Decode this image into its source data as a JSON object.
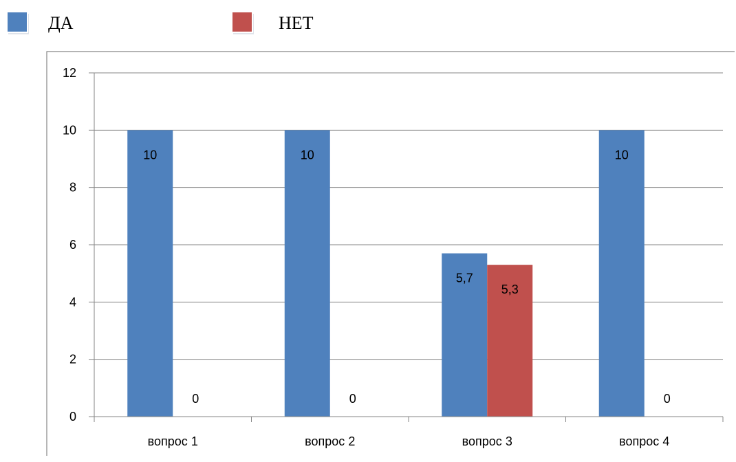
{
  "chart_data": {
    "type": "bar",
    "categories": [
      "вопрос 1",
      "вопрос 2",
      "вопрос 3",
      "вопрос 4"
    ],
    "series": [
      {
        "name": "ДА",
        "color": "#4f81bd",
        "values": [
          10,
          10,
          5.7,
          10
        ],
        "labels": [
          "10",
          "10",
          "5,7",
          "10"
        ]
      },
      {
        "name": "НЕТ",
        "color": "#c0504d",
        "values": [
          0,
          0,
          5.3,
          0
        ],
        "labels": [
          "0",
          "0",
          "5,3",
          "0"
        ]
      }
    ],
    "yticks": [
      "0",
      "2",
      "4",
      "6",
      "8",
      "10",
      "12"
    ],
    "ylim": [
      0,
      12
    ],
    "grid": true,
    "legend_position": "top-left"
  }
}
